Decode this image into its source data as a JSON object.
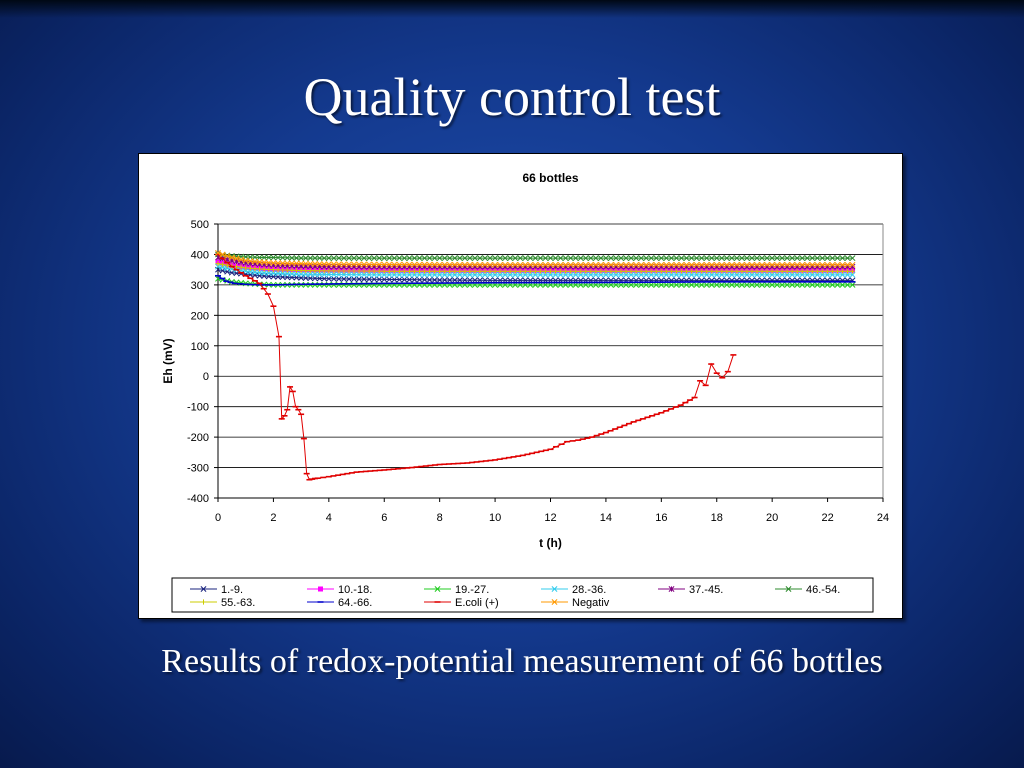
{
  "slide": {
    "title": "Quality control test",
    "caption": "Results of redox-potential measurement of 66 bottles"
  },
  "chart_data": {
    "type": "line",
    "title": "66 bottles",
    "xlabel": "t (h)",
    "ylabel": "Eh (mV)",
    "xlim": [
      0,
      24
    ],
    "ylim": [
      -400,
      500
    ],
    "xticks": [
      0,
      2,
      4,
      6,
      8,
      10,
      12,
      14,
      16,
      18,
      20,
      22,
      24
    ],
    "yticks": [
      -400,
      -300,
      -200,
      -100,
      0,
      100,
      200,
      300,
      400,
      500
    ],
    "grid": "horizontal",
    "legend_position": "bottom",
    "series": [
      {
        "name": "1.-9.",
        "color": "#1a237e",
        "marker": "x",
        "x": [
          0,
          0.5,
          1,
          1.5,
          2,
          3,
          4,
          6,
          8,
          10,
          14,
          18,
          22.9
        ],
        "y": [
          350,
          340,
          335,
          330,
          327,
          323,
          320,
          318,
          316,
          315,
          315,
          315,
          315
        ]
      },
      {
        "name": "10.-18.",
        "color": "#ff00ff",
        "marker": "square",
        "x": [
          0,
          0.5,
          1,
          1.5,
          2,
          3,
          4,
          6,
          10,
          14,
          18,
          22.9
        ],
        "y": [
          375,
          365,
          358,
          355,
          352,
          350,
          349,
          348,
          348,
          348,
          348,
          348
        ]
      },
      {
        "name": "19.-27.",
        "color": "#22cc22",
        "marker": "x",
        "x": [
          0,
          0.5,
          1,
          1.5,
          2,
          3,
          4,
          6,
          10,
          14,
          18,
          22.9
        ],
        "y": [
          320,
          310,
          305,
          302,
          300,
          300,
          300,
          300,
          300,
          300,
          300,
          300
        ]
      },
      {
        "name": "28.-36.",
        "color": "#33ccee",
        "marker": "x",
        "x": [
          0,
          0.5,
          1,
          1.5,
          2,
          3,
          4,
          6,
          10,
          14,
          18,
          22.9
        ],
        "y": [
          360,
          352,
          345,
          340,
          338,
          335,
          334,
          333,
          333,
          333,
          333,
          333
        ]
      },
      {
        "name": "37.-45.",
        "color": "#800080",
        "marker": "star",
        "x": [
          0,
          0.5,
          1,
          1.5,
          2,
          3,
          4,
          6,
          10,
          14,
          18,
          22.9
        ],
        "y": [
          390,
          380,
          372,
          368,
          365,
          362,
          360,
          360,
          360,
          360,
          360,
          360
        ]
      },
      {
        "name": "46.-54.",
        "color": "#2e8b2e",
        "marker": "x",
        "x": [
          0,
          0.5,
          1,
          1.5,
          2,
          3,
          4,
          6,
          10,
          14,
          18,
          22.9
        ],
        "y": [
          400,
          395,
          392,
          390,
          390,
          388,
          388,
          388,
          388,
          388,
          388,
          388
        ]
      },
      {
        "name": "55.-63.",
        "color": "#cccc00",
        "marker": "plus",
        "x": [
          0,
          0.5,
          1,
          1.5,
          2,
          3,
          4,
          6,
          10,
          14,
          18,
          22.9
        ],
        "y": [
          370,
          362,
          356,
          352,
          350,
          347,
          346,
          345,
          345,
          345,
          345,
          345
        ]
      },
      {
        "name": "64.-66.",
        "color": "#0000cc",
        "marker": "dash",
        "x": [
          0,
          0.3,
          0.6,
          1,
          1.5,
          2,
          3,
          4,
          6,
          10,
          14,
          18,
          22.9
        ],
        "y": [
          330,
          312,
          305,
          302,
          300,
          300,
          302,
          303,
          305,
          307,
          308,
          310,
          310
        ]
      },
      {
        "name": "E.coli (+)",
        "color": "#e00000",
        "marker": "dash",
        "x": [
          0,
          0.5,
          1,
          1.5,
          1.8,
          2.0,
          2.2,
          2.3,
          2.4,
          2.5,
          2.6,
          2.7,
          2.8,
          2.9,
          3.0,
          3.1,
          3.2,
          3.3,
          3.4,
          3.5,
          3.6,
          4,
          5,
          6,
          7,
          8,
          9,
          10,
          11,
          12,
          12.6,
          13,
          13.5,
          14,
          15,
          16,
          16.7,
          17.2,
          17.4,
          17.6,
          17.8,
          18.0,
          18.2,
          18.4,
          18.6
        ],
        "y": [
          400,
          360,
          330,
          305,
          270,
          230,
          130,
          -140,
          -130,
          -110,
          -35,
          -50,
          -100,
          -110,
          -125,
          -205,
          -320,
          -340,
          -338,
          -336,
          -335,
          -330,
          -315,
          -308,
          -300,
          -290,
          -285,
          -275,
          -260,
          -240,
          -215,
          -210,
          -200,
          -185,
          -150,
          -120,
          -95,
          -70,
          -15,
          -30,
          40,
          10,
          -5,
          15,
          70
        ]
      },
      {
        "name": "Negativ",
        "color": "#ff9900",
        "marker": "x",
        "x": [
          0,
          0.5,
          1,
          1.5,
          2,
          3,
          4,
          6,
          10,
          14,
          18,
          22.9
        ],
        "y": [
          405,
          390,
          380,
          375,
          372,
          370,
          368,
          367,
          366,
          366,
          366,
          366
        ]
      }
    ]
  }
}
